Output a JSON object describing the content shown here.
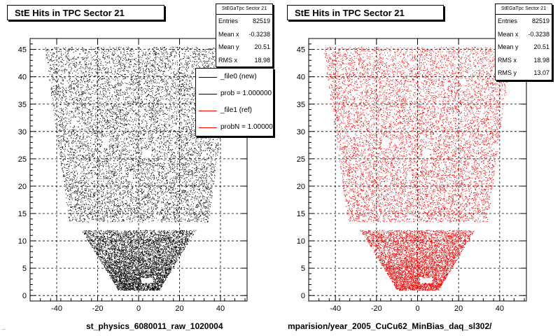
{
  "panels": [
    {
      "title": "StE Hits in TPC Sector 21",
      "color": "#000000",
      "stats": {
        "name": "StEGaTpc Sector 21",
        "rows": [
          {
            "label": "Entries",
            "value": "82519"
          },
          {
            "label": "Mean x",
            "value": "-0.3238"
          },
          {
            "label": "Mean y",
            "value": "20.51"
          },
          {
            "label": "RMS x",
            "value": "18.98"
          }
        ]
      },
      "footer": "st_physics_6080011_raw_1020004"
    },
    {
      "title": "StE Hits in TPC Sector 21",
      "color": "#ff0000",
      "stats": {
        "name": "StEGaTpc Sector 21",
        "rows": [
          {
            "label": "Entries",
            "value": "82519"
          },
          {
            "label": "Mean x",
            "value": "-0.3238"
          },
          {
            "label": "Mean y",
            "value": "20.51"
          },
          {
            "label": "RMS x",
            "value": "18.98"
          },
          {
            "label": "RMS y",
            "value": "13.07"
          }
        ]
      },
      "footer": "mparision/year_2005_CuCu62_MinBias_daq_sl302/"
    }
  ],
  "legend": [
    {
      "text": "_file0 (new)",
      "color": "#000000"
    },
    {
      "text": "prob = 1.000000",
      "color": "#000000"
    },
    {
      "text": "_file1 (ref)",
      "color": "#ff0000"
    },
    {
      "text": "probN = 1.000000",
      "color": "#ff0000"
    }
  ],
  "footer_small": "...",
  "chart_data": [
    {
      "type": "scatter",
      "title": "StE Hits in TPC Sector 21",
      "xlabel": "",
      "ylabel": "",
      "xlim": [
        -53,
        53
      ],
      "ylim": [
        -1,
        47
      ],
      "xticks": [
        -40,
        -20,
        0,
        20,
        40
      ],
      "yticks": [
        0,
        5,
        10,
        15,
        20,
        25,
        30,
        35,
        40,
        45
      ],
      "grid": true,
      "series": [
        {
          "color": "#000000"
        }
      ],
      "region": {
        "description": "dense hit density forming the TPC sector trapezoid",
        "inner": {
          "y": [
            1,
            12
          ],
          "halfwidth_bottom": 10,
          "halfwidth_top": 28
        },
        "outer": {
          "y": [
            13.5,
            45.5
          ],
          "halfwidth_bottom": 34,
          "halfwidth_top": 46
        }
      }
    },
    {
      "type": "scatter",
      "title": "StE Hits in TPC Sector 21",
      "xlabel": "",
      "ylabel": "",
      "xlim": [
        -53,
        53
      ],
      "ylim": [
        -1,
        47
      ],
      "xticks": [
        -40,
        -20,
        0,
        20,
        40
      ],
      "yticks": [
        0,
        5,
        10,
        15,
        20,
        25,
        30,
        35,
        40,
        45
      ],
      "grid": true,
      "series": [
        {
          "color": "#ff0000"
        }
      ],
      "region": {
        "description": "dense hit density forming the TPC sector trapezoid",
        "inner": {
          "y": [
            1,
            12
          ],
          "halfwidth_bottom": 10,
          "halfwidth_top": 28
        },
        "outer": {
          "y": [
            13.5,
            45.5
          ],
          "halfwidth_bottom": 34,
          "halfwidth_top": 46
        }
      }
    }
  ]
}
